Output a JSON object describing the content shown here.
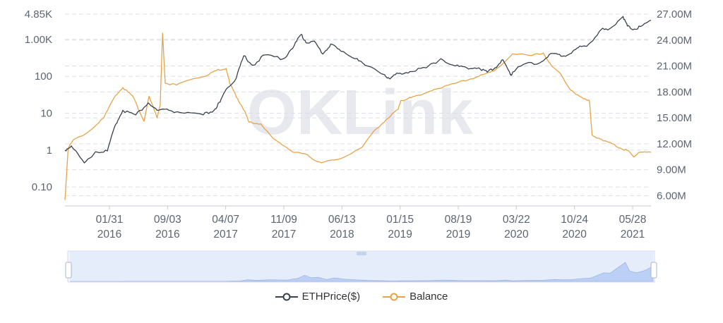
{
  "watermark": "OKLink",
  "colors": {
    "eth": "#39414f",
    "balance": "#e8a34a",
    "navigator": "#bcd0f5"
  },
  "chart_data": {
    "type": "line",
    "x_ticks": [
      "01/31\n2016",
      "09/03\n2016",
      "04/07\n2017",
      "11/09\n2017",
      "06/13\n2018",
      "01/15\n2019",
      "08/19\n2019",
      "03/22\n2020",
      "10/24\n2020",
      "05/28\n2021"
    ],
    "y_left_ticks": [
      "0.10",
      "1",
      "10",
      "100",
      "1.00K",
      "4.85K"
    ],
    "y_left_scale": "log",
    "y_left_range": [
      0.04,
      4850
    ],
    "y_right_ticks": [
      "6.00M",
      "9.00M",
      "12.00M",
      "15.00M",
      "18.00M",
      "21.00M",
      "24.00M",
      "27.00M"
    ],
    "y_right_range": [
      5.3,
      27.0
    ],
    "grid": true,
    "legend_position": "bottom",
    "series": [
      {
        "name": "ETHPrice($)",
        "axis": "left",
        "x": [
          "2015-08-08",
          "2015-09-01",
          "2015-10-20",
          "2015-12-01",
          "2016-01-15",
          "2016-02-15",
          "2016-03-13",
          "2016-05-01",
          "2016-06-17",
          "2016-07-20",
          "2016-09-03",
          "2016-11-01",
          "2017-01-10",
          "2017-02-20",
          "2017-03-15",
          "2017-04-07",
          "2017-05-15",
          "2017-06-12",
          "2017-07-16",
          "2017-09-01",
          "2017-11-09",
          "2017-12-20",
          "2018-01-13",
          "2018-02-06",
          "2018-03-05",
          "2018-04-06",
          "2018-05-06",
          "2018-06-13",
          "2018-08-14",
          "2018-09-12",
          "2018-11-25",
          "2018-12-15",
          "2019-01-15",
          "2019-03-01",
          "2019-05-01",
          "2019-06-25",
          "2019-08-19",
          "2019-09-30",
          "2019-11-15",
          "2019-12-17",
          "2020-01-15",
          "2020-02-14",
          "2020-03-13",
          "2020-03-22",
          "2020-05-01",
          "2020-07-01",
          "2020-08-15",
          "2020-09-20",
          "2020-10-24",
          "2020-11-24",
          "2021-01-01",
          "2021-02-20",
          "2021-03-15",
          "2021-05-12",
          "2021-05-28",
          "2021-06-22",
          "2021-07-20",
          "2021-08-25"
        ],
        "y": [
          1.0,
          1.3,
          0.45,
          0.9,
          0.95,
          5.0,
          12,
          9,
          19,
          12,
          12,
          10,
          9,
          12,
          20,
          45,
          90,
          360,
          200,
          380,
          300,
          700,
          1350,
          800,
          900,
          400,
          750,
          480,
          300,
          200,
          110,
          85,
          120,
          135,
          170,
          300,
          190,
          170,
          170,
          130,
          170,
          280,
          110,
          130,
          210,
          230,
          420,
          350,
          410,
          600,
          730,
          1900,
          1800,
          4200,
          2300,
          1900,
          2300,
          3300
        ]
      },
      {
        "name": "Balance",
        "axis": "right",
        "x": [
          "2015-08-08",
          "2015-08-20",
          "2015-09-10",
          "2015-11-01",
          "2016-01-01",
          "2016-02-15",
          "2016-03-13",
          "2016-04-20",
          "2016-06-01",
          "2016-06-20",
          "2016-07-20",
          "2016-08-01",
          "2016-08-10",
          "2016-08-20",
          "2016-10-01",
          "2016-12-01",
          "2017-02-01",
          "2017-03-01",
          "2017-04-07",
          "2017-04-20",
          "2017-05-20",
          "2017-06-15",
          "2017-07-01",
          "2017-08-15",
          "2017-10-01",
          "2017-11-09",
          "2017-12-20",
          "2018-02-01",
          "2018-03-13",
          "2018-04-01",
          "2018-06-13",
          "2018-09-01",
          "2018-10-20",
          "2018-12-01",
          "2019-01-15",
          "2019-01-25",
          "2019-02-20",
          "2019-04-01",
          "2019-06-01",
          "2019-08-19",
          "2019-10-15",
          "2019-12-01",
          "2020-01-10",
          "2020-03-22",
          "2020-06-01",
          "2020-07-15",
          "2020-08-15",
          "2020-09-20",
          "2020-10-24",
          "2020-11-15",
          "2020-12-20",
          "2021-01-05",
          "2021-01-15",
          "2021-02-20",
          "2021-04-01",
          "2021-05-01",
          "2021-06-01",
          "2021-06-20",
          "2021-07-10",
          "2021-08-25"
        ],
        "y": [
          5.5,
          11.5,
          12.5,
          13.3,
          15.0,
          17.6,
          18.5,
          17.5,
          14.6,
          17.5,
          15.0,
          16.5,
          24.8,
          19.0,
          18.8,
          19.5,
          20.0,
          20.5,
          20.7,
          19.0,
          17.2,
          15.8,
          14.5,
          14.3,
          12.6,
          11.8,
          11.0,
          10.8,
          10.0,
          9.8,
          10.3,
          11.6,
          13.6,
          14.8,
          16.0,
          17.0,
          17.2,
          17.6,
          18.3,
          19.0,
          19.5,
          20.0,
          20.4,
          22.4,
          22.2,
          22.5,
          21.0,
          20.0,
          18.3,
          17.7,
          17.2,
          17.0,
          13.0,
          12.5,
          12.0,
          11.5,
          11.2,
          10.5,
          11.0,
          11.0
        ]
      }
    ]
  }
}
